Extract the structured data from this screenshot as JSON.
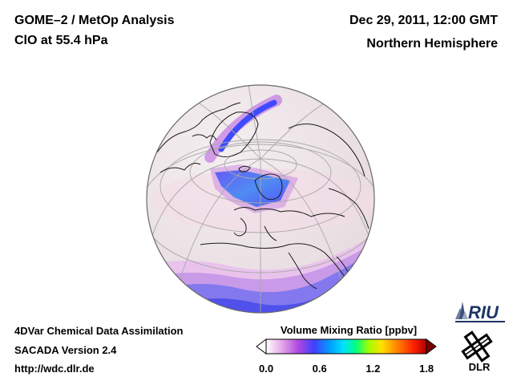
{
  "header": {
    "title_left_1": "GOME–2 / MetOp Analysis",
    "title_left_2": "ClO at 55.4 hPa",
    "title_right_1": "Dec 29, 2011, 12:00 GMT",
    "title_right_2": "Northern Hemisphere"
  },
  "footer": {
    "line1": "4DVar Chemical Data Assimilation",
    "line2": "SACADA Version 2.4",
    "line3": "http://wdc.dlr.de"
  },
  "colorbar": {
    "title": "Volume Mixing Ratio [ppbv]",
    "ticks": [
      "0.0",
      "0.6",
      "1.2",
      "1.8"
    ],
    "range": [
      0.0,
      1.8
    ],
    "colors": [
      "#ffffff",
      "#e4a6e8",
      "#b048e0",
      "#4040ff",
      "#00a0ff",
      "#00e0ff",
      "#00ff80",
      "#a0ff00",
      "#ffe000",
      "#ff8000",
      "#ff2000",
      "#b00000"
    ]
  },
  "map": {
    "projection": "orthographic",
    "region": "Northern Hemisphere",
    "ocean_color": "#f0e6ea",
    "coast_color": "#1a1a1a",
    "grid_color": "#a8a8a8"
  },
  "logos": {
    "riu": "RIU",
    "dlr": "DLR"
  }
}
